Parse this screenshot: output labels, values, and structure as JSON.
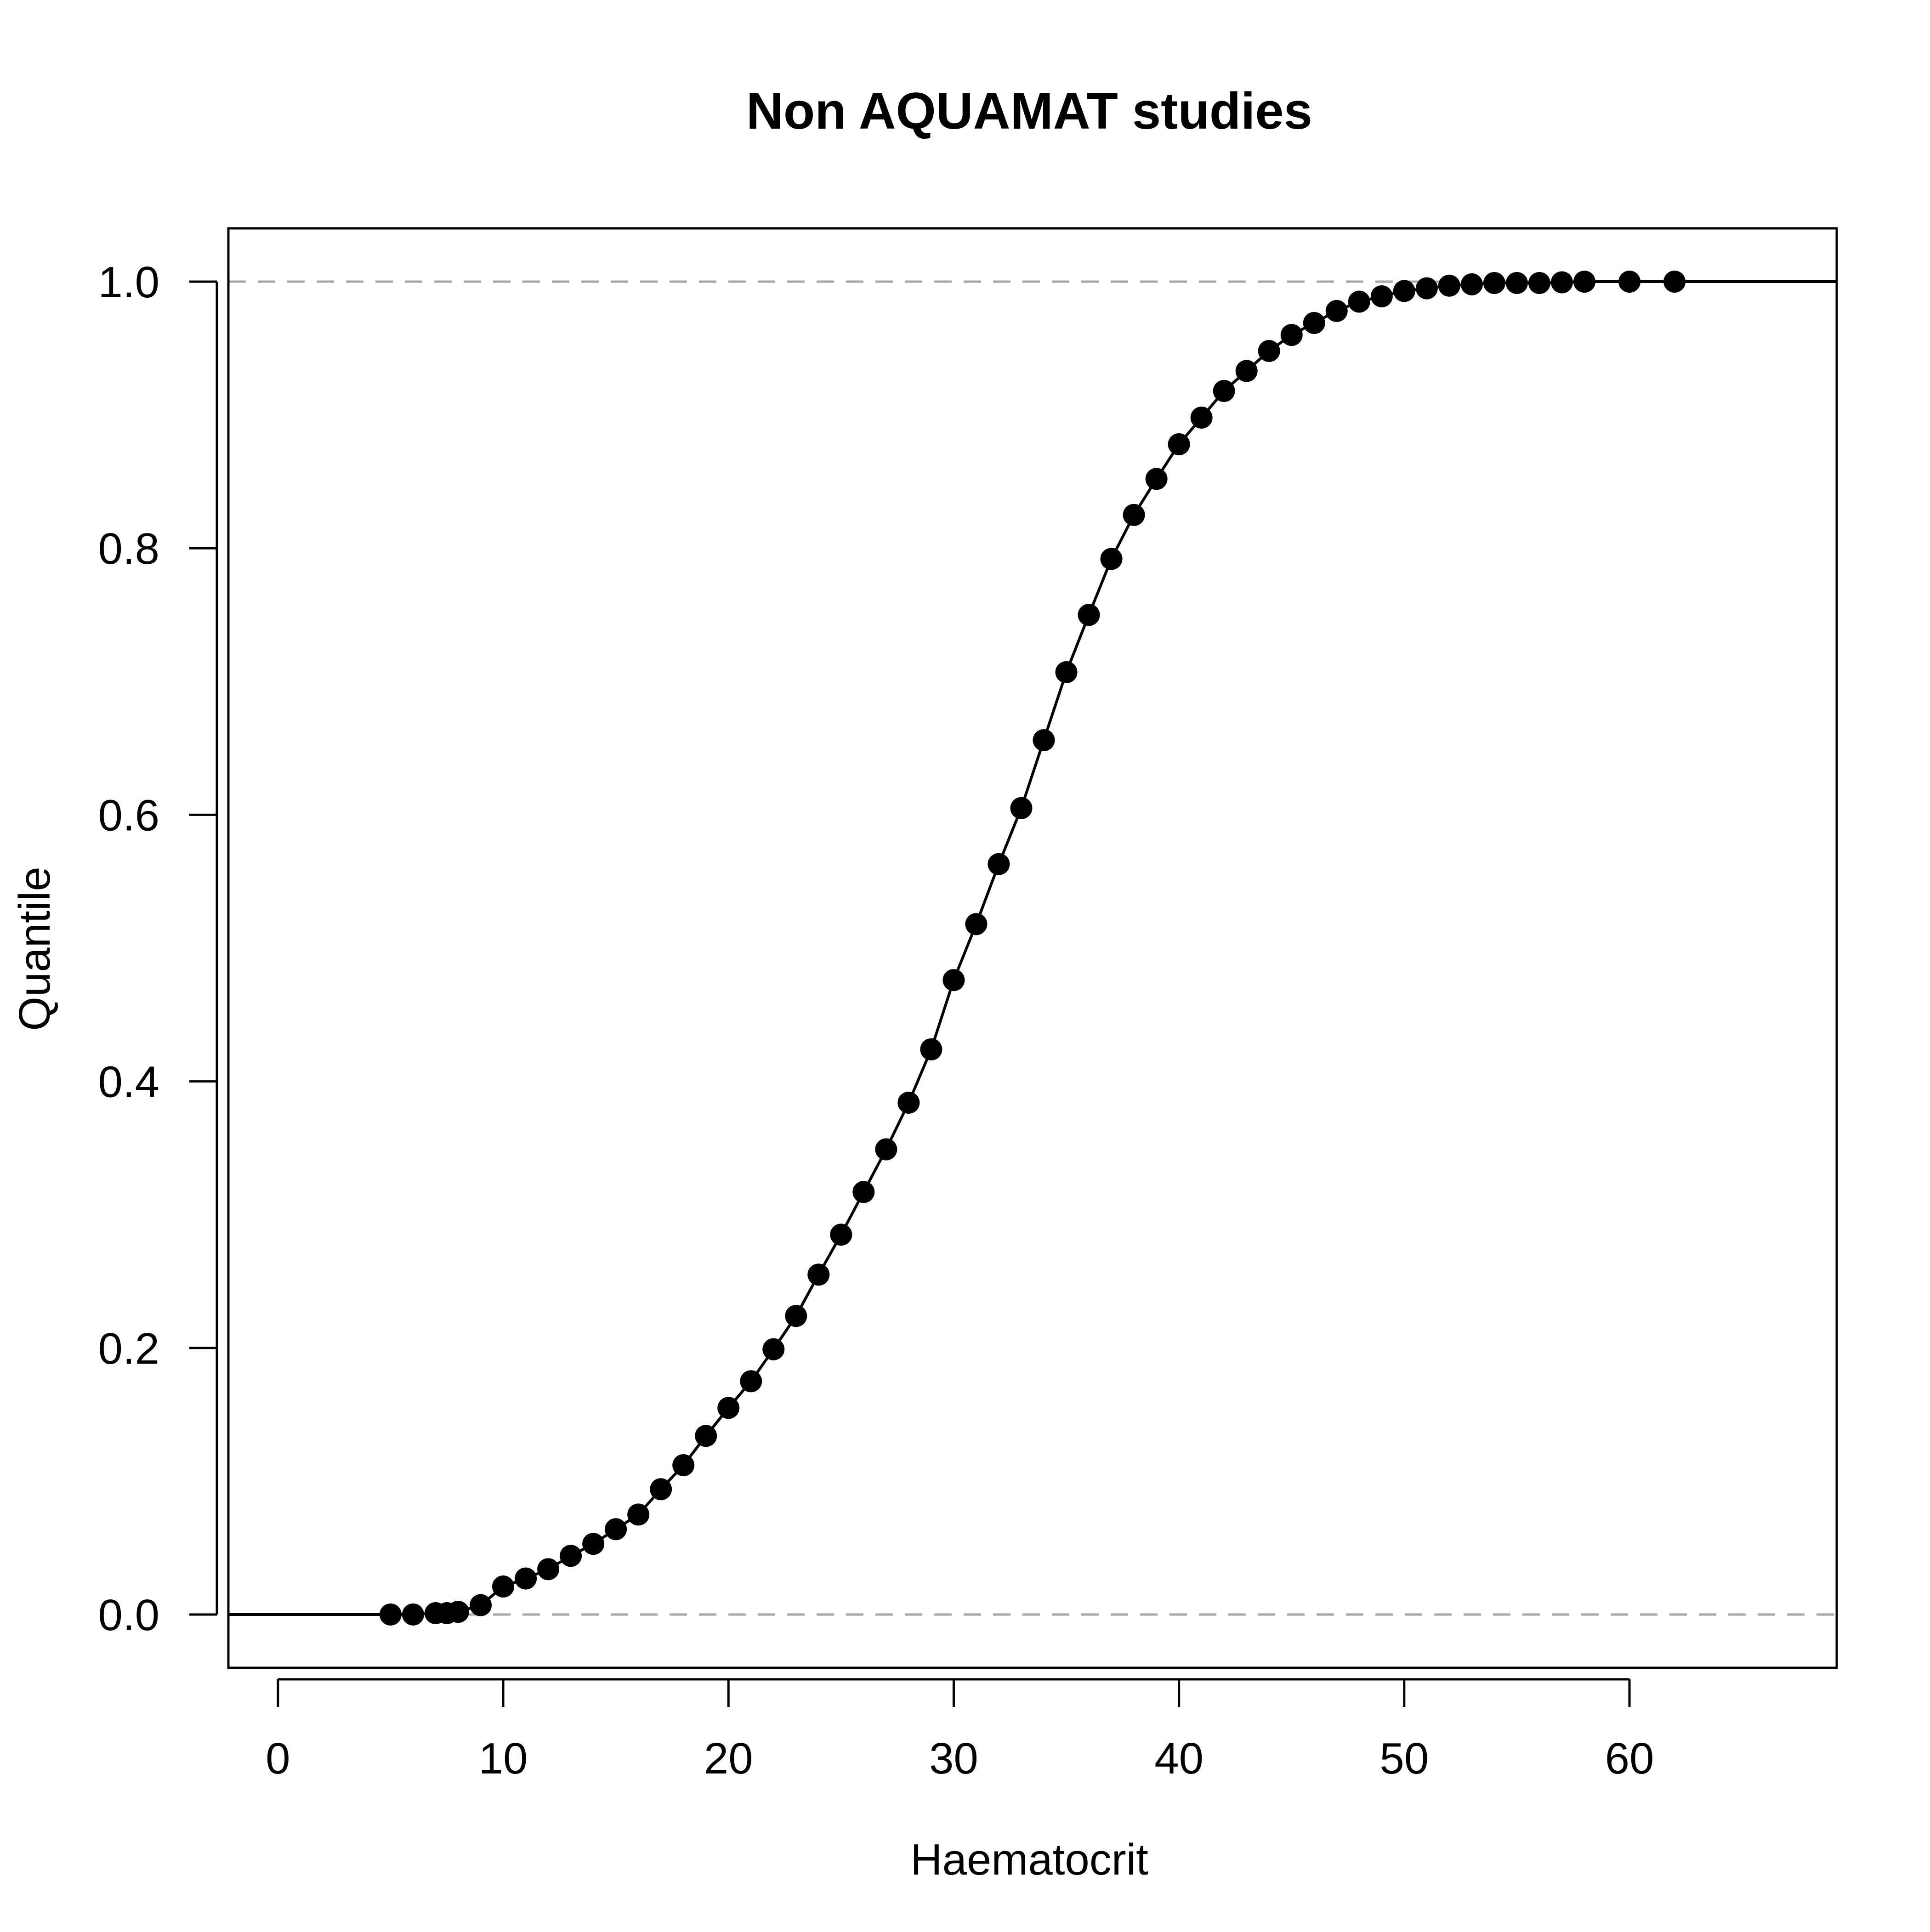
{
  "chart_data": {
    "type": "scatter",
    "title": "Non AQUAMAT studies",
    "xlabel": "Haematocrit",
    "ylabel": "Quantile",
    "xlim": [
      -2.2,
      69.2
    ],
    "ylim": [
      -0.04,
      1.04
    ],
    "x_ticks": [
      0,
      10,
      20,
      30,
      40,
      50,
      60
    ],
    "x_tick_labels": [
      "0",
      "10",
      "20",
      "30",
      "40",
      "50",
      "60"
    ],
    "y_ticks": [
      0.0,
      0.2,
      0.4,
      0.6,
      0.8,
      1.0
    ],
    "y_tick_labels": [
      "0.0",
      "0.2",
      "0.4",
      "0.6",
      "0.8",
      "1.0"
    ],
    "grid": false,
    "reference_lines": [
      {
        "axis": "y",
        "value": 0.0,
        "style": "dashed",
        "color": "#a6a6a6"
      },
      {
        "axis": "y",
        "value": 1.0,
        "style": "dashed",
        "color": "#a6a6a6"
      }
    ],
    "series": [
      {
        "points": [
          [
            5,
            0.0
          ],
          [
            6,
            0.0
          ],
          [
            7,
            0.001
          ],
          [
            7.5,
            0.001
          ],
          [
            8,
            0.002
          ],
          [
            9,
            0.007
          ],
          [
            10,
            0.021
          ],
          [
            11,
            0.027
          ],
          [
            12,
            0.034
          ],
          [
            13,
            0.044
          ],
          [
            14,
            0.053
          ],
          [
            15,
            0.064
          ],
          [
            16,
            0.075
          ],
          [
            17,
            0.094
          ],
          [
            18,
            0.112
          ],
          [
            19,
            0.134
          ],
          [
            20,
            0.155
          ],
          [
            21,
            0.175
          ],
          [
            22,
            0.199
          ],
          [
            23,
            0.224
          ],
          [
            24,
            0.255
          ],
          [
            25,
            0.285
          ],
          [
            26,
            0.317
          ],
          [
            27,
            0.349
          ],
          [
            28,
            0.384
          ],
          [
            29,
            0.424
          ],
          [
            30,
            0.476
          ],
          [
            31,
            0.518
          ],
          [
            32,
            0.563
          ],
          [
            33,
            0.605
          ],
          [
            34,
            0.656
          ],
          [
            35,
            0.707
          ],
          [
            36,
            0.75
          ],
          [
            37,
            0.792
          ],
          [
            38,
            0.825
          ],
          [
            39,
            0.852
          ],
          [
            40,
            0.878
          ],
          [
            41,
            0.898
          ],
          [
            42,
            0.918
          ],
          [
            43,
            0.933
          ],
          [
            44,
            0.948
          ],
          [
            45,
            0.96
          ],
          [
            46,
            0.969
          ],
          [
            47,
            0.978
          ],
          [
            48,
            0.985
          ],
          [
            49,
            0.989
          ],
          [
            50,
            0.993
          ],
          [
            51,
            0.995
          ],
          [
            52,
            0.997
          ],
          [
            53,
            0.998
          ],
          [
            54,
            0.999
          ],
          [
            55,
            0.999
          ],
          [
            56,
            0.999
          ],
          [
            57,
            0.9995
          ],
          [
            58,
            1.0
          ],
          [
            60,
            1.0
          ],
          [
            62,
            1.0
          ]
        ],
        "color": "#000000"
      }
    ]
  }
}
